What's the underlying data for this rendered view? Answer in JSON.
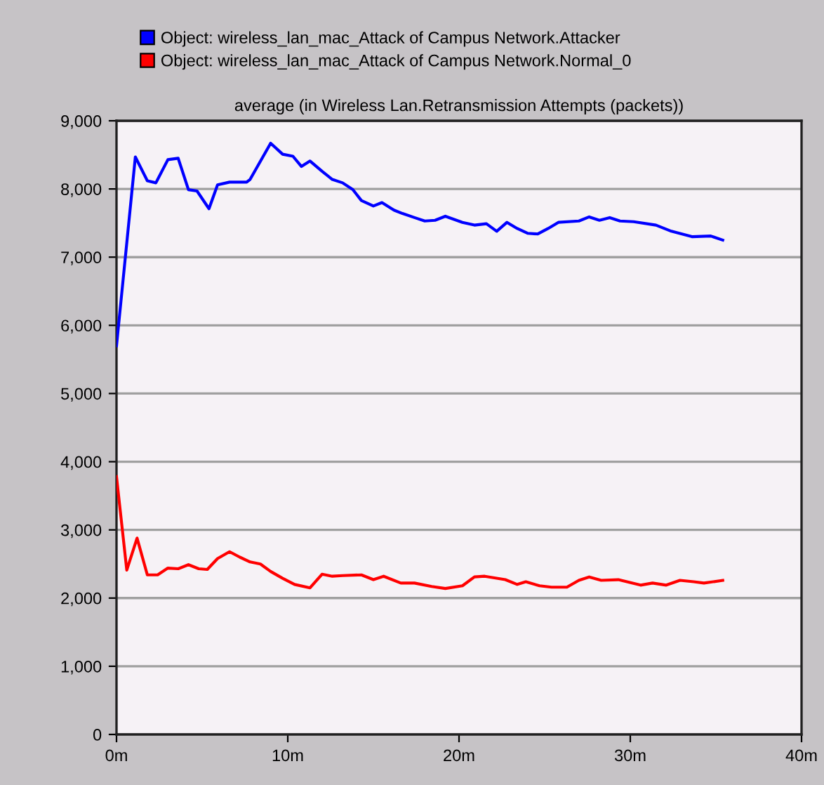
{
  "chart_data": {
    "type": "line",
    "title": "average (in Wireless Lan.Retransmission Attempts (packets))",
    "series": [
      {
        "name": "Object: wireless_lan_mac_Attack of Campus Network.Attacker",
        "color": "#0000ff",
        "x": [
          0,
          1.1,
          1.8,
          2.3,
          3.0,
          3.6,
          4.2,
          4.7,
          5.4,
          5.9,
          6.6,
          7.6,
          7.8,
          9.0,
          9.7,
          10.3,
          10.8,
          11.3,
          12.0,
          12.6,
          13.2,
          13.8,
          14.3,
          15.0,
          15.5,
          16.2,
          16.7,
          17.4,
          18.0,
          18.6,
          19.2,
          20.2,
          20.9,
          21.6,
          22.2,
          22.8,
          23.4,
          24.0,
          24.6,
          25.2,
          25.8,
          27.0,
          27.6,
          28.2,
          28.8,
          29.4,
          30.2,
          31.5,
          32.4,
          33.6,
          34.7,
          35.4
        ],
        "values": [
          5700,
          8470,
          8120,
          8090,
          8430,
          8450,
          7990,
          7970,
          7710,
          8060,
          8100,
          8100,
          8140,
          8670,
          8510,
          8480,
          8330,
          8410,
          8260,
          8140,
          8090,
          7990,
          7830,
          7750,
          7800,
          7690,
          7640,
          7580,
          7530,
          7540,
          7600,
          7510,
          7470,
          7490,
          7380,
          7510,
          7420,
          7350,
          7340,
          7420,
          7510,
          7530,
          7590,
          7540,
          7580,
          7530,
          7520,
          7470,
          7380,
          7300,
          7310,
          7250
        ]
      },
      {
        "name": "Object: wireless_lan_mac_Attack of Campus Network.Normal_0",
        "color": "#ff0000",
        "x": [
          0,
          0.6,
          1.2,
          1.8,
          2.4,
          3.0,
          3.6,
          4.2,
          4.8,
          5.3,
          5.9,
          6.6,
          7.2,
          7.8,
          8.4,
          9.0,
          9.7,
          10.4,
          11.3,
          12.0,
          12.6,
          13.2,
          14.3,
          15.0,
          15.6,
          16.6,
          17.4,
          18.4,
          19.2,
          20.2,
          20.9,
          21.5,
          22.7,
          23.4,
          23.9,
          24.7,
          25.4,
          26.3,
          27.0,
          27.6,
          28.3,
          29.3,
          30.6,
          31.3,
          32.1,
          32.9,
          33.7,
          34.3,
          35.4
        ],
        "values": [
          3780,
          2410,
          2880,
          2340,
          2340,
          2440,
          2430,
          2490,
          2430,
          2420,
          2580,
          2680,
          2600,
          2530,
          2500,
          2390,
          2290,
          2200,
          2150,
          2350,
          2320,
          2330,
          2340,
          2270,
          2320,
          2220,
          2220,
          2170,
          2140,
          2180,
          2310,
          2320,
          2270,
          2200,
          2240,
          2180,
          2160,
          2160,
          2260,
          2310,
          2260,
          2270,
          2190,
          2220,
          2190,
          2260,
          2240,
          2220,
          2260
        ]
      }
    ],
    "xlim": [
      0,
      40
    ],
    "xticks": [
      {
        "value": 0,
        "label": "0m"
      },
      {
        "value": 10,
        "label": "10m"
      },
      {
        "value": 20,
        "label": "20m"
      },
      {
        "value": 30,
        "label": "30m"
      },
      {
        "value": 40,
        "label": "40m"
      }
    ],
    "ylim": [
      0,
      9000
    ],
    "yticks": [
      {
        "value": 0,
        "label": "0"
      },
      {
        "value": 1000,
        "label": "1,000"
      },
      {
        "value": 2000,
        "label": "2,000"
      },
      {
        "value": 3000,
        "label": "3,000"
      },
      {
        "value": 4000,
        "label": "4,000"
      },
      {
        "value": 5000,
        "label": "5,000"
      },
      {
        "value": 6000,
        "label": "6,000"
      },
      {
        "value": 7000,
        "label": "7,000"
      },
      {
        "value": 8000,
        "label": "8,000"
      },
      {
        "value": 9000,
        "label": "9,000"
      }
    ],
    "grid": "y",
    "legend": "top",
    "marker": "none",
    "line_style": "solid"
  }
}
